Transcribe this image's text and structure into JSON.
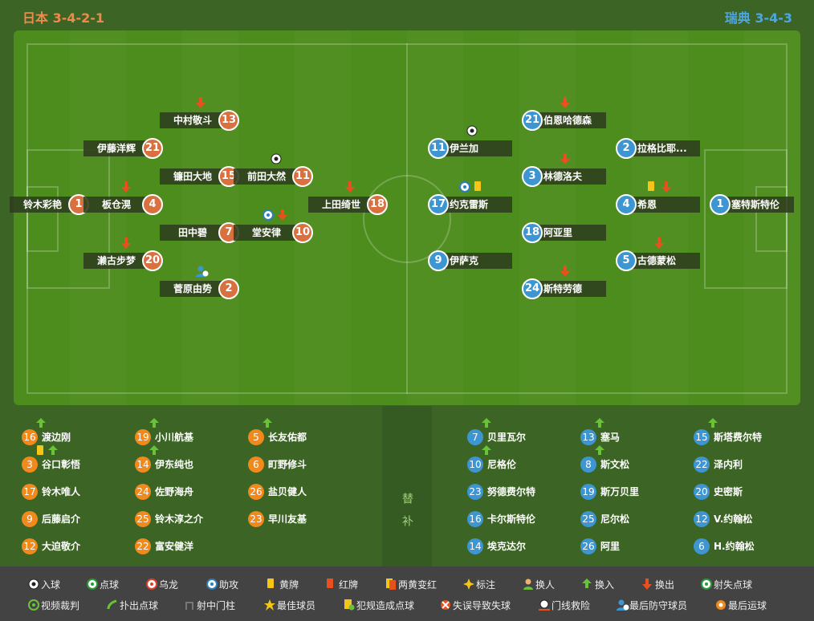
{
  "header": {
    "home_team": "日本",
    "home_formation": "3-4-2-1",
    "away_team": "瑞典",
    "away_formation": "3-4-3"
  },
  "home": {
    "players": [
      {
        "name": "铃木彩艳",
        "number": 1
      },
      {
        "name": "伊藤洋辉",
        "number": 21
      },
      {
        "name": "板仓滉",
        "number": 4
      },
      {
        "name": "濑古步梦",
        "number": 20
      },
      {
        "name": "中村敬斗",
        "number": 13
      },
      {
        "name": "镰田大地",
        "number": 15
      },
      {
        "name": "田中碧",
        "number": 7
      },
      {
        "name": "菅原由势",
        "number": 2
      },
      {
        "name": "前田大然",
        "number": 11
      },
      {
        "name": "堂安律",
        "number": 10
      },
      {
        "name": "上田绮世",
        "number": 18
      }
    ],
    "subs": [
      {
        "name": "渡边刚",
        "number": 16
      },
      {
        "name": "谷口彰悟",
        "number": 3
      },
      {
        "name": "铃木唯人",
        "number": 17
      },
      {
        "name": "后藤启介",
        "number": 9
      },
      {
        "name": "大迫敬介",
        "number": 12
      },
      {
        "name": "小川航基",
        "number": 19
      },
      {
        "name": "伊东纯也",
        "number": 14
      },
      {
        "name": "佐野海舟",
        "number": 24
      },
      {
        "name": "铃木淳之介",
        "number": 25
      },
      {
        "name": "富安健洋",
        "number": 22
      },
      {
        "name": "长友佑都",
        "number": 5
      },
      {
        "name": "町野修斗",
        "number": 6
      },
      {
        "name": "盐贝健人",
        "number": 26
      },
      {
        "name": "早川友基",
        "number": 23
      }
    ]
  },
  "away": {
    "players": [
      {
        "name": "伊兰加",
        "number": 11
      },
      {
        "name": "约克雷斯",
        "number": 17
      },
      {
        "name": "伊萨克",
        "number": 9
      },
      {
        "name": "伯恩哈德森",
        "number": 21
      },
      {
        "name": "林德洛夫",
        "number": 3
      },
      {
        "name": "阿亚里",
        "number": 18
      },
      {
        "name": "斯特劳德",
        "number": 24
      },
      {
        "name": "拉格比耶...",
        "number": 2
      },
      {
        "name": "希恩",
        "number": 4
      },
      {
        "name": "古德蒙松",
        "number": 5
      },
      {
        "name": "塞特斯特伦",
        "number": 1
      }
    ],
    "subs": [
      {
        "name": "贝里瓦尔",
        "number": 7
      },
      {
        "name": "尼格伦",
        "number": 10
      },
      {
        "name": "努德费尔特",
        "number": 23
      },
      {
        "name": "卡尔斯特伦",
        "number": 16
      },
      {
        "name": "埃克达尔",
        "number": 14
      },
      {
        "name": "塞马",
        "number": 13
      },
      {
        "name": "斯文松",
        "number": 8
      },
      {
        "name": "斯万贝里",
        "number": 19
      },
      {
        "name": "尼尔松",
        "number": 25
      },
      {
        "name": "阿里",
        "number": 26
      },
      {
        "name": "斯塔费尔特",
        "number": 15
      },
      {
        "name": "泽内利",
        "number": 22
      },
      {
        "name": "史密斯",
        "number": 20
      },
      {
        "name": "V.约翰松",
        "number": 12
      },
      {
        "name": "H.约翰松",
        "number": 6
      }
    ]
  },
  "subs_label": "替补",
  "legend": [
    "入球",
    "点球",
    "乌龙",
    "助攻",
    "黄牌",
    "红牌",
    "两黄变红",
    "标注",
    "换人",
    "换入",
    "换出",
    "射失点球",
    "视频裁判",
    "扑出点球",
    "射中门柱",
    "最佳球员",
    "犯规造成点球",
    "失误导致失球",
    "门线救险",
    "最后防守球员",
    "最后运球"
  ]
}
